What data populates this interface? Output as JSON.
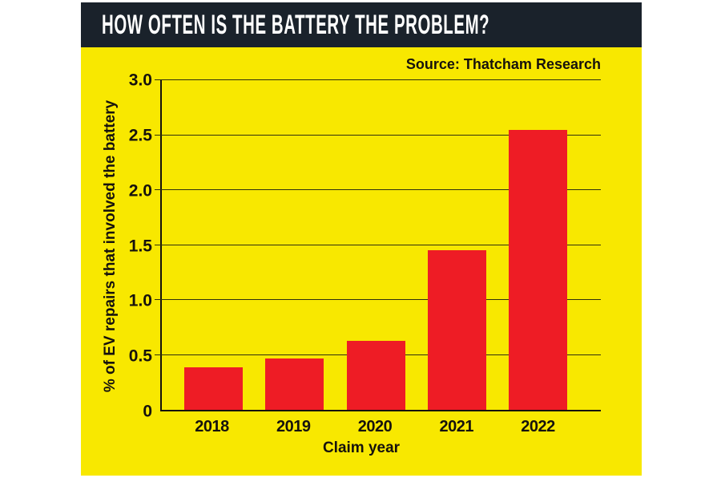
{
  "header": {
    "title": "HOW OFTEN IS THE BATTERY THE PROBLEM?"
  },
  "chart_data": {
    "type": "bar",
    "title": "HOW OFTEN IS THE BATTERY THE PROBLEM?",
    "source": "Source: Thatcham Research",
    "categories": [
      "2018",
      "2019",
      "2020",
      "2021",
      "2022"
    ],
    "values": [
      0.39,
      0.47,
      0.63,
      1.45,
      2.55
    ],
    "xlabel": "Claim year",
    "ylabel": "% of EV repairs that involved the battery",
    "ylim": [
      0,
      3.0
    ],
    "yticks": [
      0,
      0.5,
      1.0,
      1.5,
      2.0,
      2.5,
      3.0
    ],
    "ytick_labels": [
      "0",
      "0.5",
      "1.0",
      "1.5",
      "2.0",
      "2.5",
      "3.0"
    ],
    "grid": "horizontal",
    "legend": "none"
  },
  "colors": {
    "background": "#FFFFFF",
    "panel": "#F8E800",
    "bar": "#EE1C25",
    "header": "#1A222B",
    "ink": "#16120D",
    "grid": "#30300E",
    "axis": "#16120D",
    "title_text": "#FFFFFF"
  }
}
